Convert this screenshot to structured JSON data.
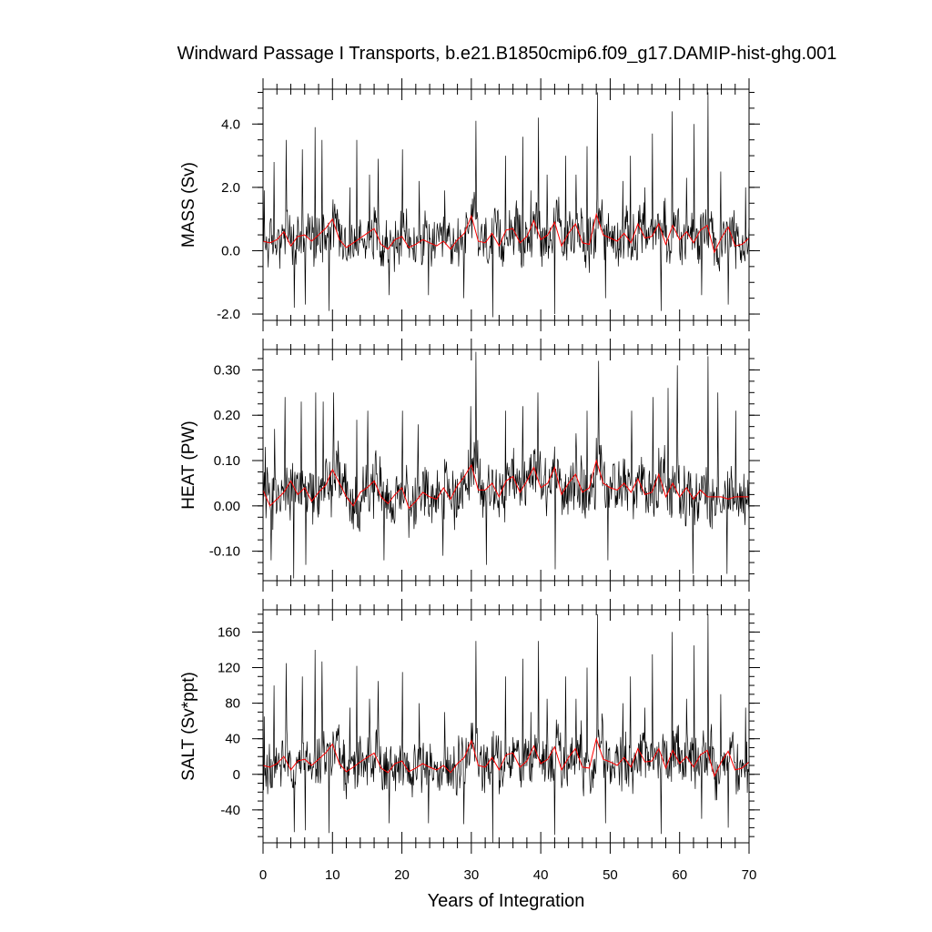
{
  "chart_data": {
    "type": "line",
    "title": "Windward Passage I Transports, b.e21.B1850cmip6.f09_g17.DAMIP-hist-ghg.001",
    "xlabel": "Years of Integration",
    "xlim": [
      0,
      70
    ],
    "xticks": [
      0,
      10,
      20,
      30,
      40,
      50,
      60,
      70
    ],
    "xtick_labels": [
      "0",
      "10",
      "20",
      "30",
      "40",
      "50",
      "60",
      "70"
    ],
    "grid": false,
    "colors": {
      "monthly": "#000000",
      "annual_mean": "#ff0000",
      "axis": "#000000"
    },
    "panels": [
      {
        "ylabel": "MASS (Sv)",
        "ylim": [
          -2.2,
          5.1
        ],
        "yticks": [
          -2.0,
          0.0,
          2.0,
          4.0
        ],
        "ytick_labels": [
          "-2.0",
          "0.0",
          "2.0",
          "4.0"
        ],
        "mean": 0.3,
        "series": [
          {
            "kind": "monthly",
            "spikes": [
              [
                0.2,
                1.9
              ],
              [
                1.6,
                2.8
              ],
              [
                3.3,
                3.5
              ],
              [
                4.5,
                -1.8
              ],
              [
                5.7,
                3.2
              ],
              [
                6.1,
                -1.7
              ],
              [
                7.5,
                3.9
              ],
              [
                8.5,
                3.5
              ],
              [
                9.5,
                -1.9
              ],
              [
                12.5,
                2.0
              ],
              [
                13.5,
                3.5
              ],
              [
                15.3,
                2.4
              ],
              [
                16.6,
                2.9
              ],
              [
                18.2,
                -1.4
              ],
              [
                20.1,
                3.2
              ],
              [
                22.5,
                2.2
              ],
              [
                23.8,
                -1.4
              ],
              [
                26.2,
                1.9
              ],
              [
                28.9,
                -1.5
              ],
              [
                30.7,
                4.1
              ],
              [
                33.1,
                -2.1
              ],
              [
                34.9,
                3.0
              ],
              [
                37.4,
                3.6
              ],
              [
                38.6,
                1.9
              ],
              [
                39.7,
                4.2
              ],
              [
                40.9,
                2.4
              ],
              [
                42.0,
                -2.0
              ],
              [
                43.6,
                3.0
              ],
              [
                45.1,
                2.4
              ],
              [
                46.7,
                3.3
              ],
              [
                48.2,
                5.0
              ],
              [
                49.3,
                -1.5
              ],
              [
                51.8,
                2.2
              ],
              [
                52.9,
                3.0
              ],
              [
                55.0,
                2.0
              ],
              [
                56.1,
                3.7
              ],
              [
                57.3,
                -1.9
              ],
              [
                58.9,
                4.4
              ],
              [
                61.0,
                2.3
              ],
              [
                62.1,
                4.0
              ],
              [
                63.2,
                -1.4
              ],
              [
                64.1,
                5.0
              ],
              [
                65.9,
                2.5
              ],
              [
                67.0,
                -1.7
              ],
              [
                69.5,
                2.0
              ]
            ],
            "amp": 0.65
          },
          {
            "kind": "annual_mean",
            "y": [
              0.3,
              0.25,
              0.35,
              0.6,
              0.15,
              0.45,
              0.5,
              0.3,
              0.5,
              0.7,
              1.0,
              0.35,
              0.1,
              0.25,
              0.4,
              0.55,
              0.7,
              0.2,
              0.05,
              0.35,
              0.45,
              0.1,
              0.2,
              0.35,
              0.25,
              0.15,
              0.3,
              0.05,
              0.35,
              0.55,
              1.1,
              0.3,
              0.25,
              0.55,
              0.15,
              0.65,
              0.7,
              0.25,
              0.45,
              0.95,
              0.35,
              0.5,
              0.9,
              0.15,
              0.55,
              0.85,
              0.25,
              0.2,
              1.15,
              0.5,
              0.4,
              0.3,
              0.55,
              0.25,
              0.85,
              0.4,
              0.45,
              0.85,
              0.2,
              0.8,
              0.35,
              0.6,
              0.25,
              0.65,
              0.8,
              -0.05,
              0.4,
              0.75,
              0.15,
              0.2,
              0.4
            ]
          }
        ]
      },
      {
        "ylabel": "HEAT (PW)",
        "ylim": [
          -0.165,
          0.345
        ],
        "yticks": [
          -0.1,
          0.0,
          0.1,
          0.2,
          0.3
        ],
        "ytick_labels": [
          "-0.10",
          "0.00",
          "0.10",
          "0.20",
          "0.30"
        ],
        "mean": 0.02,
        "series": [
          {
            "kind": "monthly",
            "spikes": [
              [
                0.3,
                0.13
              ],
              [
                1.2,
                -0.12
              ],
              [
                1.7,
                0.17
              ],
              [
                3.2,
                0.24
              ],
              [
                4.4,
                -0.16
              ],
              [
                5.5,
                0.23
              ],
              [
                6.2,
                -0.13
              ],
              [
                7.6,
                0.25
              ],
              [
                8.7,
                0.23
              ],
              [
                10.2,
                0.25
              ],
              [
                13.5,
                0.19
              ],
              [
                15.1,
                0.21
              ],
              [
                17.4,
                -0.12
              ],
              [
                20.1,
                0.21
              ],
              [
                22.3,
                0.18
              ],
              [
                25.9,
                -0.11
              ],
              [
                29.9,
                0.22
              ],
              [
                30.7,
                0.34
              ],
              [
                32.2,
                -0.13
              ],
              [
                34.9,
                0.21
              ],
              [
                37.4,
                0.22
              ],
              [
                39.6,
                0.25
              ],
              [
                42.1,
                -0.14
              ],
              [
                45.1,
                0.16
              ],
              [
                46.7,
                0.21
              ],
              [
                48.3,
                0.32
              ],
              [
                49.7,
                -0.12
              ],
              [
                53.1,
                0.21
              ],
              [
                56.2,
                0.24
              ],
              [
                58.3,
                0.26
              ],
              [
                59.7,
                0.31
              ],
              [
                61.9,
                -0.15
              ],
              [
                64.1,
                0.33
              ],
              [
                65.5,
                0.25
              ],
              [
                66.8,
                -0.15
              ],
              [
                68.1,
                0.21
              ]
            ],
            "amp": 0.05
          },
          {
            "kind": "annual_mean",
            "y": [
              0.035,
              0.0,
              0.015,
              0.03,
              0.055,
              0.025,
              0.04,
              0.01,
              0.03,
              0.045,
              0.08,
              0.05,
              0.02,
              0.0,
              0.03,
              0.04,
              0.055,
              0.02,
              0.005,
              0.025,
              0.04,
              -0.005,
              0.01,
              0.03,
              0.02,
              0.015,
              0.04,
              0.015,
              0.045,
              0.065,
              0.09,
              0.035,
              0.035,
              0.05,
              0.02,
              0.055,
              0.065,
              0.03,
              0.055,
              0.085,
              0.04,
              0.05,
              0.085,
              0.025,
              0.05,
              0.07,
              0.03,
              0.04,
              0.1,
              0.05,
              0.04,
              0.035,
              0.05,
              0.03,
              0.06,
              0.025,
              0.03,
              0.07,
              0.02,
              0.05,
              0.02,
              0.04,
              0.015,
              0.035,
              0.02,
              0.02,
              0.02,
              0.015,
              0.02,
              0.02,
              0.02
            ]
          }
        ]
      },
      {
        "ylabel": "SALT (Sv*ppt)",
        "ylim": [
          -77,
          185
        ],
        "yticks": [
          -40,
          0,
          40,
          80,
          120,
          160
        ],
        "ytick_labels": [
          "-40",
          "0",
          "40",
          "80",
          "120",
          "160"
        ],
        "mean": 10,
        "series": [
          {
            "kind": "monthly",
            "spikes": [
              [
                0.2,
                65
              ],
              [
                1.6,
                100
              ],
              [
                3.3,
                125
              ],
              [
                4.5,
                -65
              ],
              [
                5.7,
                110
              ],
              [
                6.1,
                -63
              ],
              [
                7.5,
                140
              ],
              [
                8.5,
                127
              ],
              [
                9.5,
                -66
              ],
              [
                12.5,
                75
              ],
              [
                13.5,
                122
              ],
              [
                15.3,
                85
              ],
              [
                16.6,
                105
              ],
              [
                18.2,
                -55
              ],
              [
                20.1,
                115
              ],
              [
                22.5,
                80
              ],
              [
                23.8,
                -55
              ],
              [
                26.2,
                70
              ],
              [
                28.9,
                -56
              ],
              [
                30.7,
                150
              ],
              [
                33.1,
                -77
              ],
              [
                34.9,
                110
              ],
              [
                37.4,
                130
              ],
              [
                38.6,
                70
              ],
              [
                39.7,
                150
              ],
              [
                40.9,
                85
              ],
              [
                42.0,
                -68
              ],
              [
                43.6,
                110
              ],
              [
                45.1,
                85
              ],
              [
                46.7,
                120
              ],
              [
                48.2,
                180
              ],
              [
                49.3,
                -55
              ],
              [
                51.8,
                80
              ],
              [
                52.9,
                110
              ],
              [
                55.0,
                75
              ],
              [
                56.1,
                135
              ],
              [
                57.3,
                -67
              ],
              [
                58.9,
                160
              ],
              [
                61.0,
                85
              ],
              [
                62.1,
                145
              ],
              [
                63.2,
                -50
              ],
              [
                64.1,
                180
              ],
              [
                65.9,
                90
              ],
              [
                67.0,
                -60
              ],
              [
                69.5,
                75
              ]
            ],
            "amp": 23
          },
          {
            "kind": "annual_mean",
            "y": [
              10,
              8,
              12,
              20,
              5,
              15,
              17,
              10,
              17,
              24,
              34,
              12,
              3,
              8,
              14,
              19,
              24,
              7,
              2,
              12,
              15,
              3,
              7,
              12,
              8,
              5,
              10,
              2,
              12,
              19,
              38,
              10,
              8,
              19,
              5,
              22,
              24,
              8,
              15,
              32,
              12,
              17,
              31,
              5,
              19,
              29,
              8,
              7,
              40,
              17,
              14,
              10,
              19,
              8,
              29,
              14,
              15,
              29,
              7,
              27,
              12,
              20,
              8,
              22,
              27,
              -2,
              14,
              26,
              5,
              7,
              14
            ]
          }
        ]
      }
    ]
  }
}
